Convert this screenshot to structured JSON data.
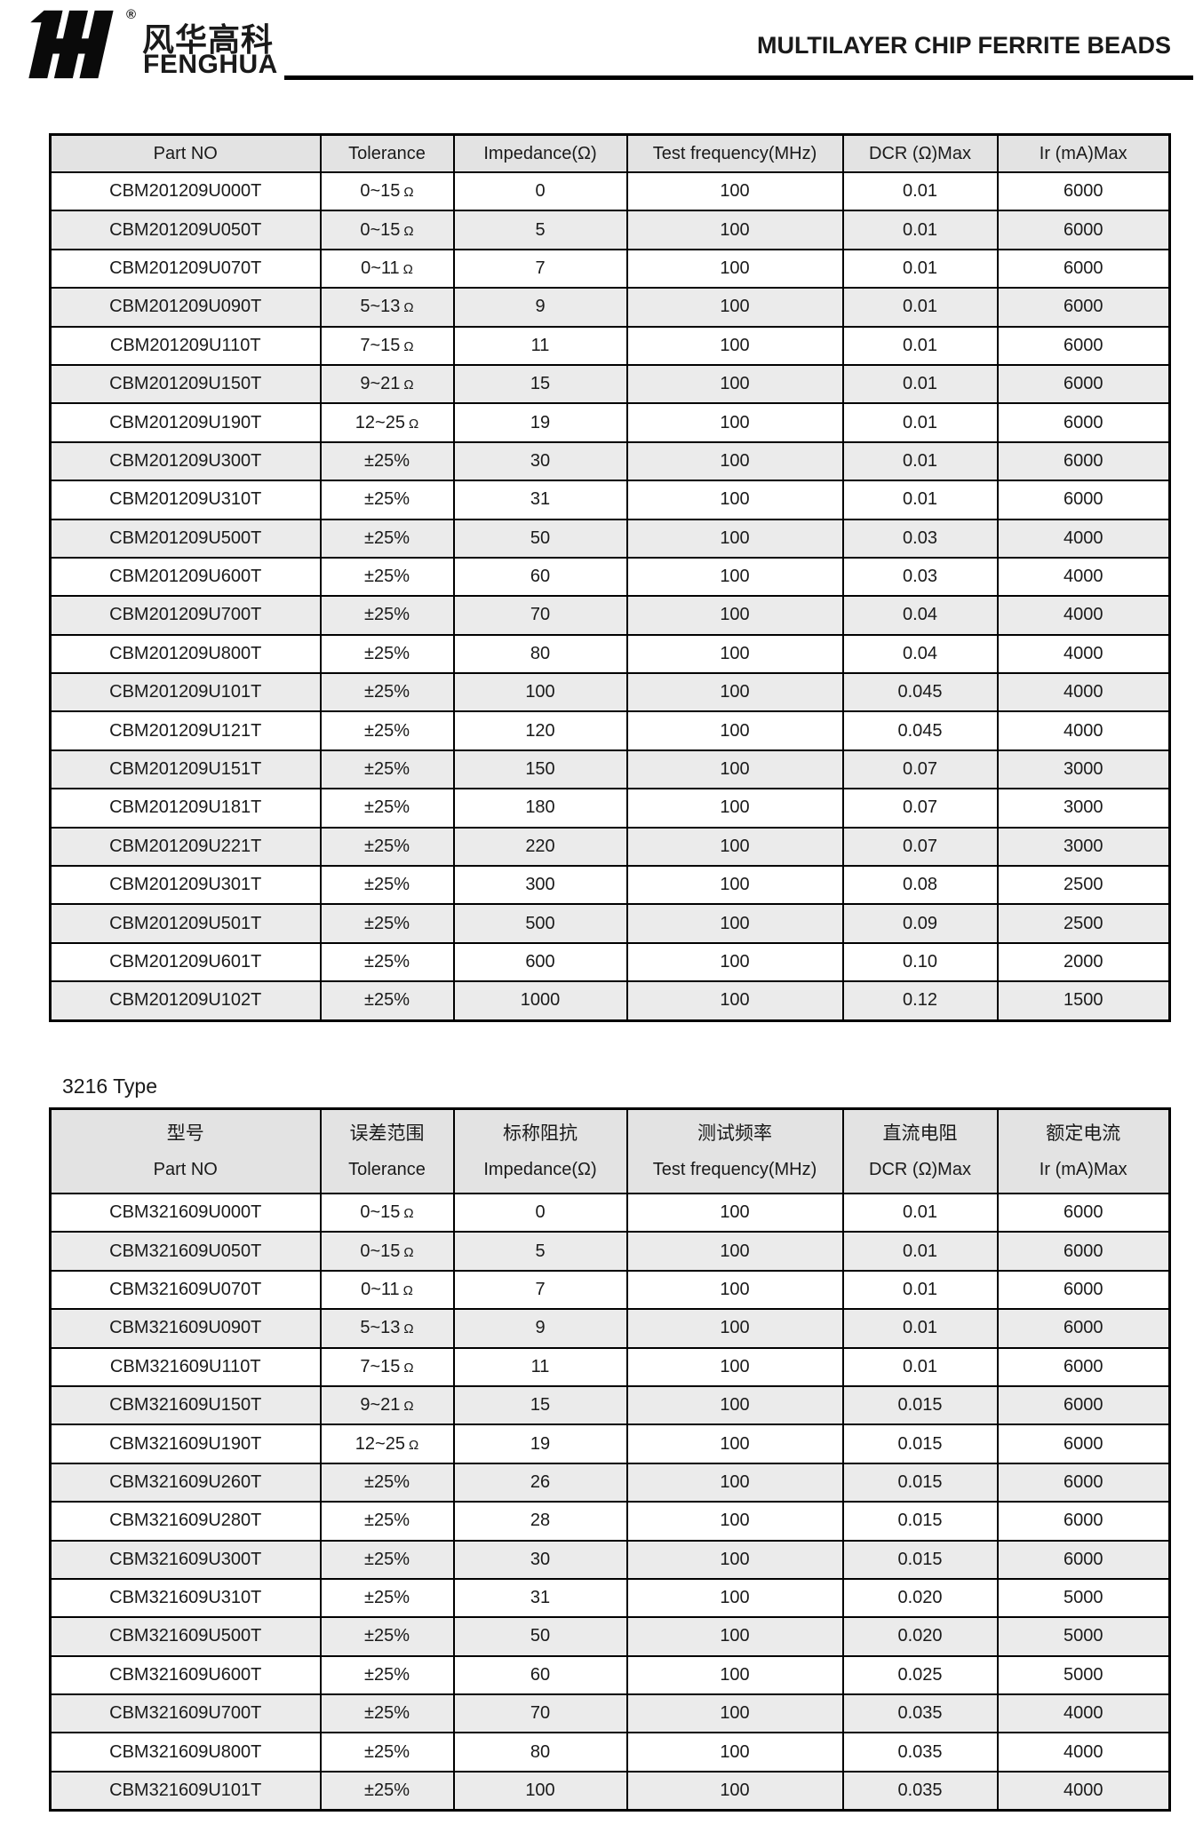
{
  "header": {
    "logo_monogram": "FH",
    "registered_mark": "®",
    "brand_chinese": "风华高科",
    "brand_english": "FENGHUA",
    "title": "MULTILAYER CHIP FERRITE BEADS"
  },
  "colors": {
    "header_bg": "#e3e3e3",
    "row_alt_bg": "#ebebeb",
    "border": "#000000",
    "text": "#1a1a1a"
  },
  "table1": {
    "columns": [
      "Part NO",
      "Tolerance",
      "Impedance(Ω)",
      "Test frequency(MHz)",
      "DCR (Ω)Max",
      "Ir (mA)Max"
    ],
    "rows": [
      [
        "CBM201209U000T",
        "0~15Ω",
        "0",
        "100",
        "0.01",
        "6000"
      ],
      [
        "CBM201209U050T",
        "0~15Ω",
        "5",
        "100",
        "0.01",
        "6000"
      ],
      [
        "CBM201209U070T",
        "0~11Ω",
        "7",
        "100",
        "0.01",
        "6000"
      ],
      [
        "CBM201209U090T",
        "5~13Ω",
        "9",
        "100",
        "0.01",
        "6000"
      ],
      [
        "CBM201209U110T",
        "7~15Ω",
        "11",
        "100",
        "0.01",
        "6000"
      ],
      [
        "CBM201209U150T",
        "9~21Ω",
        "15",
        "100",
        "0.01",
        "6000"
      ],
      [
        "CBM201209U190T",
        "12~25Ω",
        "19",
        "100",
        "0.01",
        "6000"
      ],
      [
        "CBM201209U300T",
        "±25%",
        "30",
        "100",
        "0.01",
        "6000"
      ],
      [
        "CBM201209U310T",
        "±25%",
        "31",
        "100",
        "0.01",
        "6000"
      ],
      [
        "CBM201209U500T",
        "±25%",
        "50",
        "100",
        "0.03",
        "4000"
      ],
      [
        "CBM201209U600T",
        "±25%",
        "60",
        "100",
        "0.03",
        "4000"
      ],
      [
        "CBM201209U700T",
        "±25%",
        "70",
        "100",
        "0.04",
        "4000"
      ],
      [
        "CBM201209U800T",
        "±25%",
        "80",
        "100",
        "0.04",
        "4000"
      ],
      [
        "CBM201209U101T",
        "±25%",
        "100",
        "100",
        "0.045",
        "4000"
      ],
      [
        "CBM201209U121T",
        "±25%",
        "120",
        "100",
        "0.045",
        "4000"
      ],
      [
        "CBM201209U151T",
        "±25%",
        "150",
        "100",
        "0.07",
        "3000"
      ],
      [
        "CBM201209U181T",
        "±25%",
        "180",
        "100",
        "0.07",
        "3000"
      ],
      [
        "CBM201209U221T",
        "±25%",
        "220",
        "100",
        "0.07",
        "3000"
      ],
      [
        "CBM201209U301T",
        "±25%",
        "300",
        "100",
        "0.08",
        "2500"
      ],
      [
        "CBM201209U501T",
        "±25%",
        "500",
        "100",
        "0.09",
        "2500"
      ],
      [
        "CBM201209U601T",
        "±25%",
        "600",
        "100",
        "0.10",
        "2000"
      ],
      [
        "CBM201209U102T",
        "±25%",
        "1000",
        "100",
        "0.12",
        "1500"
      ]
    ]
  },
  "section_label": "3216 Type",
  "table2": {
    "columns_cn": [
      "型号",
      "误差范围",
      "标称阻抗",
      "测试频率",
      "直流电阻",
      "额定电流"
    ],
    "columns_en": [
      "Part NO",
      "Tolerance",
      "Impedance(Ω)",
      "Test frequency(MHz)",
      "DCR (Ω)Max",
      "Ir (mA)Max"
    ],
    "rows": [
      [
        "CBM321609U000T",
        "0~15Ω",
        "0",
        "100",
        "0.01",
        "6000"
      ],
      [
        "CBM321609U050T",
        "0~15Ω",
        "5",
        "100",
        "0.01",
        "6000"
      ],
      [
        "CBM321609U070T",
        "0~11Ω",
        "7",
        "100",
        "0.01",
        "6000"
      ],
      [
        "CBM321609U090T",
        "5~13Ω",
        "9",
        "100",
        "0.01",
        "6000"
      ],
      [
        "CBM321609U110T",
        "7~15Ω",
        "11",
        "100",
        "0.01",
        "6000"
      ],
      [
        "CBM321609U150T",
        "9~21Ω",
        "15",
        "100",
        "0.015",
        "6000"
      ],
      [
        "CBM321609U190T",
        "12~25Ω",
        "19",
        "100",
        "0.015",
        "6000"
      ],
      [
        "CBM321609U260T",
        "±25%",
        "26",
        "100",
        "0.015",
        "6000"
      ],
      [
        "CBM321609U280T",
        "±25%",
        "28",
        "100",
        "0.015",
        "6000"
      ],
      [
        "CBM321609U300T",
        "±25%",
        "30",
        "100",
        "0.015",
        "6000"
      ],
      [
        "CBM321609U310T",
        "±25%",
        "31",
        "100",
        "0.020",
        "5000"
      ],
      [
        "CBM321609U500T",
        "±25%",
        "50",
        "100",
        "0.020",
        "5000"
      ],
      [
        "CBM321609U600T",
        "±25%",
        "60",
        "100",
        "0.025",
        "5000"
      ],
      [
        "CBM321609U700T",
        "±25%",
        "70",
        "100",
        "0.035",
        "4000"
      ],
      [
        "CBM321609U800T",
        "±25%",
        "80",
        "100",
        "0.035",
        "4000"
      ],
      [
        "CBM321609U101T",
        "±25%",
        "100",
        "100",
        "0.035",
        "4000"
      ]
    ]
  }
}
